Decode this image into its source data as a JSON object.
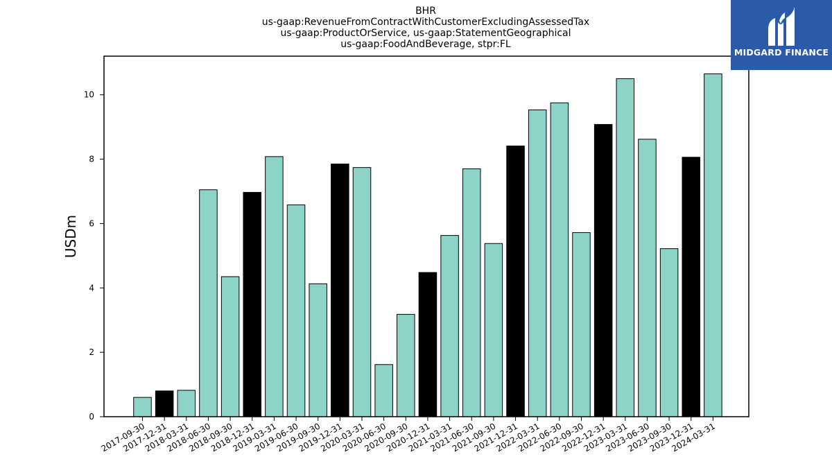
{
  "logo": {
    "text": "MIDGARD FINANCE",
    "bg_color": "#2a5aa8"
  },
  "chart_data": {
    "type": "bar",
    "title": [
      "BHR",
      "us-gaap:RevenueFromContractWithCustomerExcludingAssessedTax",
      "us-gaap:ProductOrService, us-gaap:StatementGeographical",
      "us-gaap:FoodAndBeverage, stpr:FL"
    ],
    "xlabel": "",
    "ylabel": "USDm",
    "ylim": [
      0,
      11.2
    ],
    "yticks": [
      0,
      2,
      4,
      6,
      8,
      10
    ],
    "grid": false,
    "colors": {
      "quarter": "#8dd3c7",
      "year_end": "#000000"
    },
    "categories": [
      "2017-09-30",
      "2017-12-31",
      "2018-03-31",
      "2018-06-30",
      "2018-09-30",
      "2018-12-31",
      "2019-03-31",
      "2019-06-30",
      "2019-09-30",
      "2019-12-31",
      "2020-03-31",
      "2020-06-30",
      "2020-09-30",
      "2020-12-31",
      "2021-03-31",
      "2021-06-30",
      "2021-09-30",
      "2021-12-31",
      "2022-03-31",
      "2022-06-30",
      "2022-09-30",
      "2022-12-31",
      "2023-03-31",
      "2023-06-30",
      "2023-09-30",
      "2023-12-31",
      "2024-03-31"
    ],
    "values": [
      0.6,
      0.8,
      0.82,
      7.05,
      4.35,
      6.97,
      8.08,
      6.58,
      4.13,
      7.85,
      7.74,
      1.62,
      3.18,
      4.48,
      5.63,
      7.7,
      5.38,
      8.41,
      9.53,
      9.75,
      5.72,
      9.08,
      10.5,
      8.62,
      5.22,
      8.06,
      10.65
    ]
  }
}
